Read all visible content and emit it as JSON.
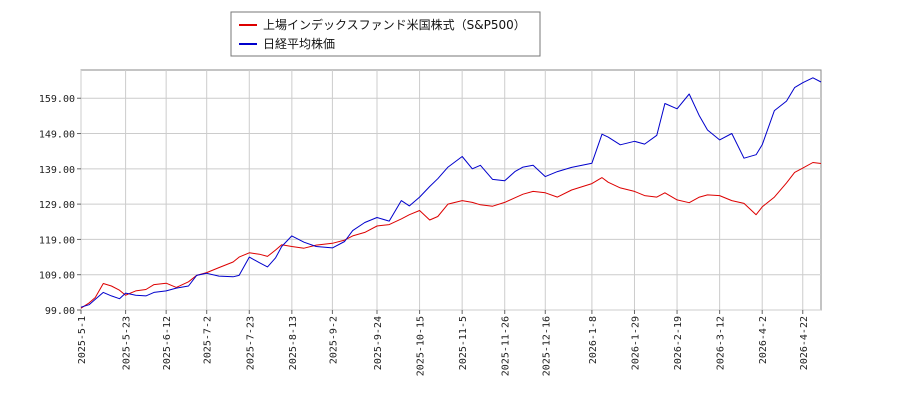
{
  "chart_data": {
    "type": "line",
    "xlabel": "",
    "ylabel": "",
    "ylim": [
      99.0,
      167.0
    ],
    "y_ticks": [
      "99.00",
      "109.00",
      "119.00",
      "129.00",
      "139.00",
      "149.00",
      "159.00"
    ],
    "x_ticks": [
      "2025-5-1",
      "2025-5-23",
      "2025-6-12",
      "2025-7-2",
      "2025-7-23",
      "2025-8-13",
      "2025-9-2",
      "2025-9-24",
      "2025-10-15",
      "2025-11-5",
      "2025-11-26",
      "2025-12-16",
      "2026-1-8",
      "2026-1-29",
      "2026-2-19",
      "2026-3-12",
      "2026-4-2",
      "2026-4-22"
    ],
    "grid": true,
    "legend_position": "top-center",
    "x_range": [
      "2025-5-1",
      "2026-5-1"
    ],
    "series": [
      {
        "name": "上場インデックスファンド米国株式（S&P500）",
        "color": "#dd0000",
        "points": [
          [
            "2025-5-1",
            99.5
          ],
          [
            "2025-5-5",
            101.0
          ],
          [
            "2025-5-8",
            102.5
          ],
          [
            "2025-5-12",
            106.5
          ],
          [
            "2025-5-16",
            105.8
          ],
          [
            "2025-5-20",
            104.6
          ],
          [
            "2025-5-23",
            103.2
          ],
          [
            "2025-5-28",
            104.4
          ],
          [
            "2025-6-2",
            104.8
          ],
          [
            "2025-6-6",
            106.2
          ],
          [
            "2025-6-12",
            106.6
          ],
          [
            "2025-6-17",
            105.4
          ],
          [
            "2025-6-23",
            107.0
          ],
          [
            "2025-6-27",
            108.8
          ],
          [
            "2025-7-2",
            109.6
          ],
          [
            "2025-7-8",
            111.0
          ],
          [
            "2025-7-15",
            112.6
          ],
          [
            "2025-7-18",
            114.0
          ],
          [
            "2025-7-23",
            115.2
          ],
          [
            "2025-7-28",
            114.8
          ],
          [
            "2025-8-1",
            114.2
          ],
          [
            "2025-8-5",
            116.0
          ],
          [
            "2025-8-8",
            117.5
          ],
          [
            "2025-8-13",
            117.0
          ],
          [
            "2025-8-19",
            116.5
          ],
          [
            "2025-8-25",
            117.4
          ],
          [
            "2025-9-2",
            117.9
          ],
          [
            "2025-9-8",
            118.8
          ],
          [
            "2025-9-12",
            120.0
          ],
          [
            "2025-9-18",
            121.0
          ],
          [
            "2025-9-24",
            122.8
          ],
          [
            "2025-9-30",
            123.2
          ],
          [
            "2025-10-6",
            124.8
          ],
          [
            "2025-10-10",
            126.0
          ],
          [
            "2025-10-15",
            127.2
          ],
          [
            "2025-10-20",
            124.5
          ],
          [
            "2025-10-24",
            125.5
          ],
          [
            "2025-10-29",
            129.0
          ],
          [
            "2025-11-5",
            130.0
          ],
          [
            "2025-11-10",
            129.5
          ],
          [
            "2025-11-14",
            128.8
          ],
          [
            "2025-11-20",
            128.4
          ],
          [
            "2025-11-26",
            129.5
          ],
          [
            "2025-12-1",
            130.8
          ],
          [
            "2025-12-5",
            131.8
          ],
          [
            "2025-12-10",
            132.6
          ],
          [
            "2025-12-16",
            132.2
          ],
          [
            "2025-12-22",
            131.0
          ],
          [
            "2025-12-29",
            133.0
          ],
          [
            "2026-1-8",
            134.8
          ],
          [
            "2026-1-13",
            136.5
          ],
          [
            "2026-1-16",
            135.2
          ],
          [
            "2026-1-22",
            133.6
          ],
          [
            "2026-1-29",
            132.6
          ],
          [
            "2026-2-3",
            131.4
          ],
          [
            "2026-2-9",
            131.0
          ],
          [
            "2026-2-13",
            132.2
          ],
          [
            "2026-2-19",
            130.2
          ],
          [
            "2026-2-25",
            129.4
          ],
          [
            "2026-3-2",
            131.0
          ],
          [
            "2026-3-6",
            131.6
          ],
          [
            "2026-3-12",
            131.4
          ],
          [
            "2026-3-18",
            130.0
          ],
          [
            "2026-3-24",
            129.2
          ],
          [
            "2026-3-30",
            126.0
          ],
          [
            "2026-4-2",
            128.2
          ],
          [
            "2026-4-8",
            131.0
          ],
          [
            "2026-4-14",
            135.0
          ],
          [
            "2026-4-18",
            138.0
          ],
          [
            "2026-4-22",
            139.2
          ],
          [
            "2026-4-27",
            140.8
          ],
          [
            "2026-5-1",
            140.5
          ]
        ]
      },
      {
        "name": "日経平均株価",
        "color": "#0000cc",
        "points": [
          [
            "2025-5-1",
            99.8
          ],
          [
            "2025-5-5",
            100.5
          ],
          [
            "2025-5-8",
            102.0
          ],
          [
            "2025-5-12",
            104.0
          ],
          [
            "2025-5-16",
            103.0
          ],
          [
            "2025-5-20",
            102.2
          ],
          [
            "2025-5-23",
            103.8
          ],
          [
            "2025-5-28",
            103.2
          ],
          [
            "2025-6-2",
            103.0
          ],
          [
            "2025-6-6",
            104.0
          ],
          [
            "2025-6-12",
            104.4
          ],
          [
            "2025-6-17",
            105.2
          ],
          [
            "2025-6-23",
            105.8
          ],
          [
            "2025-6-27",
            108.8
          ],
          [
            "2025-7-2",
            109.4
          ],
          [
            "2025-7-8",
            108.6
          ],
          [
            "2025-7-15",
            108.4
          ],
          [
            "2025-7-18",
            108.8
          ],
          [
            "2025-7-23",
            114.0
          ],
          [
            "2025-7-28",
            112.4
          ],
          [
            "2025-8-1",
            111.2
          ],
          [
            "2025-8-5",
            113.8
          ],
          [
            "2025-8-8",
            117.0
          ],
          [
            "2025-8-13",
            120.0
          ],
          [
            "2025-8-19",
            118.2
          ],
          [
            "2025-8-25",
            117.0
          ],
          [
            "2025-9-2",
            116.6
          ],
          [
            "2025-9-8",
            118.4
          ],
          [
            "2025-9-12",
            121.5
          ],
          [
            "2025-9-18",
            123.8
          ],
          [
            "2025-9-24",
            125.2
          ],
          [
            "2025-9-30",
            124.2
          ],
          [
            "2025-10-6",
            130.0
          ],
          [
            "2025-10-10",
            128.5
          ],
          [
            "2025-10-15",
            131.0
          ],
          [
            "2025-10-20",
            134.0
          ],
          [
            "2025-10-24",
            136.2
          ],
          [
            "2025-10-29",
            139.5
          ],
          [
            "2025-11-5",
            142.5
          ],
          [
            "2025-11-10",
            139.0
          ],
          [
            "2025-11-14",
            140.0
          ],
          [
            "2025-11-20",
            136.0
          ],
          [
            "2025-11-26",
            135.6
          ],
          [
            "2025-12-1",
            138.2
          ],
          [
            "2025-12-5",
            139.5
          ],
          [
            "2025-12-10",
            140.0
          ],
          [
            "2025-12-16",
            136.8
          ],
          [
            "2025-12-22",
            138.2
          ],
          [
            "2025-12-29",
            139.4
          ],
          [
            "2026-1-8",
            140.6
          ],
          [
            "2026-1-13",
            148.8
          ],
          [
            "2026-1-16",
            148.0
          ],
          [
            "2026-1-22",
            145.8
          ],
          [
            "2026-1-29",
            146.8
          ],
          [
            "2026-2-3",
            146.0
          ],
          [
            "2026-2-9",
            148.5
          ],
          [
            "2026-2-13",
            157.5
          ],
          [
            "2026-2-19",
            156.0
          ],
          [
            "2026-2-25",
            160.2
          ],
          [
            "2026-3-2",
            154.0
          ],
          [
            "2026-3-6",
            150.0
          ],
          [
            "2026-3-12",
            147.2
          ],
          [
            "2026-3-18",
            149.0
          ],
          [
            "2026-3-24",
            142.0
          ],
          [
            "2026-3-30",
            143.0
          ],
          [
            "2026-4-2",
            145.8
          ],
          [
            "2026-4-8",
            155.5
          ],
          [
            "2026-4-14",
            158.2
          ],
          [
            "2026-4-18",
            162.0
          ],
          [
            "2026-4-22",
            163.4
          ],
          [
            "2026-4-27",
            164.8
          ],
          [
            "2026-5-1",
            163.6
          ]
        ]
      }
    ]
  }
}
